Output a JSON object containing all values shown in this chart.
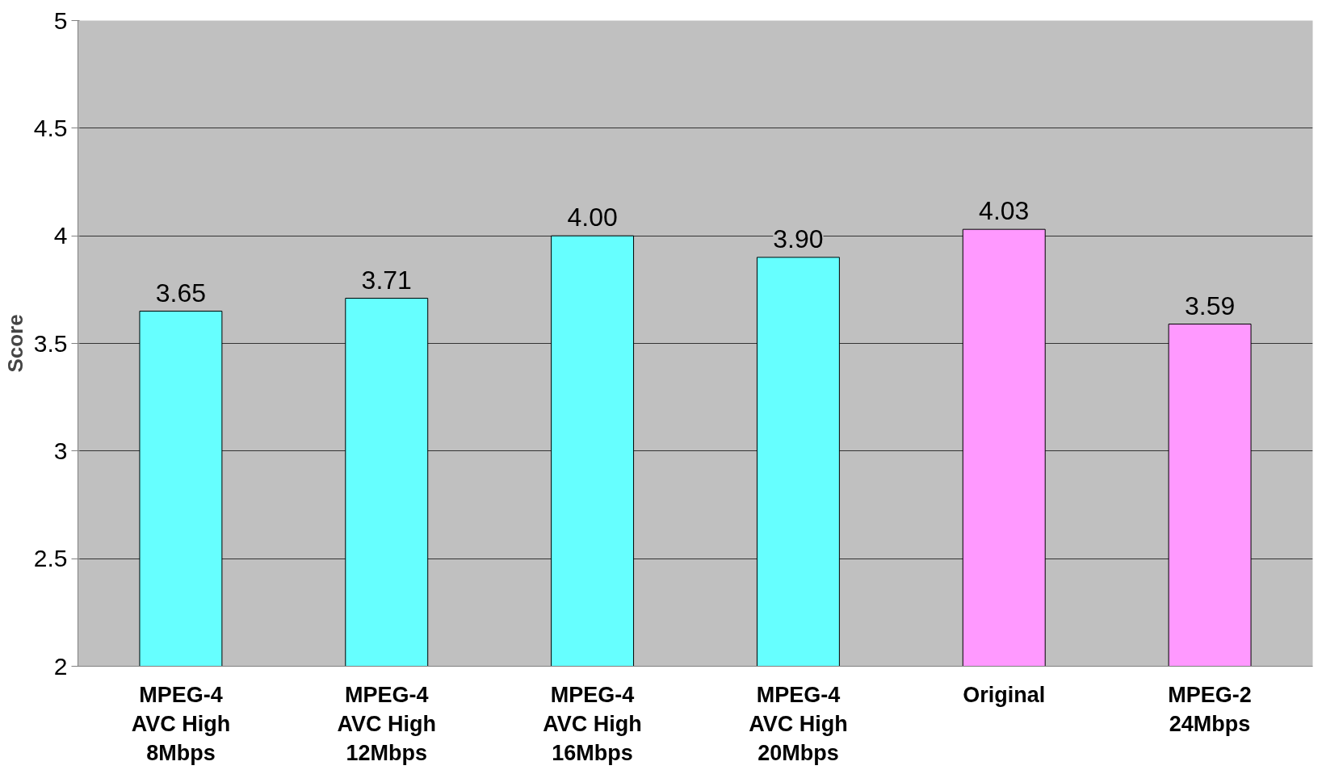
{
  "chart_data": {
    "type": "bar",
    "ylabel": "Score",
    "categories": [
      "MPEG-4\nAVC High\n8Mbps",
      "MPEG-4\nAVC High\n12Mbps",
      "MPEG-4\nAVC High\n16Mbps",
      "MPEG-4\nAVC High\n20Mbps",
      "Original",
      "MPEG-2\n24Mbps"
    ],
    "values": [
      3.65,
      3.71,
      4.0,
      3.9,
      4.03,
      3.59
    ],
    "value_labels": [
      "3.65",
      "3.71",
      "4.00",
      "3.90",
      "4.03",
      "3.59"
    ],
    "colors": [
      "#66ffff",
      "#66ffff",
      "#66ffff",
      "#66ffff",
      "#ff99ff",
      "#ff99ff"
    ],
    "ylim": [
      2,
      5
    ],
    "yticks": [
      2,
      2.5,
      3,
      3.5,
      4,
      4.5,
      5
    ],
    "grid": "y"
  }
}
